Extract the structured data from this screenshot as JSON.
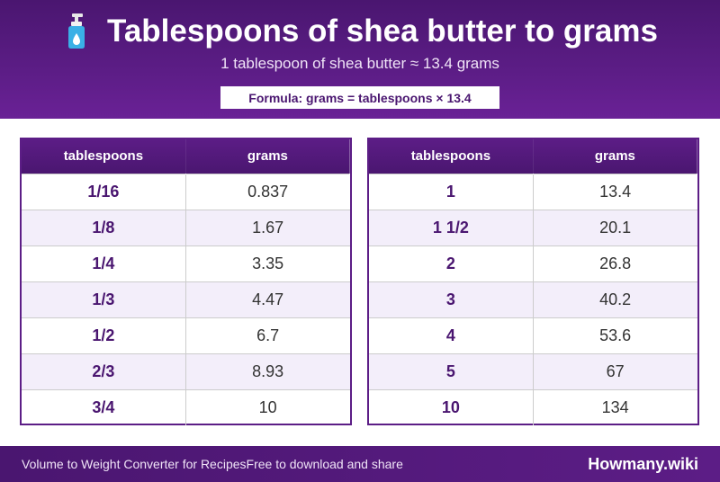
{
  "header": {
    "icon": "lotion-bottle-icon",
    "title": "Tablespoons of shea butter to grams",
    "subtitle": "1 tablespoon of shea butter ≈ 13.4 grams",
    "formula": "Formula: grams = tablespoons × 13.4"
  },
  "colors": {
    "primary": "#5c1d86",
    "primary_dark": "#4a1670",
    "row_stripe": "#f3eefa",
    "icon_bottle": "#3ab0e6"
  },
  "tables": [
    {
      "headers": [
        "tablespoons",
        "grams"
      ],
      "rows": [
        {
          "amount": "1/16",
          "value": "0.837"
        },
        {
          "amount": "1/8",
          "value": "1.67"
        },
        {
          "amount": "1/4",
          "value": "3.35"
        },
        {
          "amount": "1/3",
          "value": "4.47"
        },
        {
          "amount": "1/2",
          "value": "6.7"
        },
        {
          "amount": "2/3",
          "value": "8.93"
        },
        {
          "amount": "3/4",
          "value": "10"
        }
      ]
    },
    {
      "headers": [
        "tablespoons",
        "grams"
      ],
      "rows": [
        {
          "amount": "1",
          "value": "13.4"
        },
        {
          "amount": "1 1/2",
          "value": "20.1"
        },
        {
          "amount": "2",
          "value": "26.8"
        },
        {
          "amount": "3",
          "value": "40.2"
        },
        {
          "amount": "4",
          "value": "53.6"
        },
        {
          "amount": "5",
          "value": "67"
        },
        {
          "amount": "10",
          "value": "134"
        }
      ]
    }
  ],
  "footer": {
    "left": "Volume to Weight Converter for Recipes",
    "middle": "Free to download and share",
    "brand": "Howmany.wiki"
  }
}
